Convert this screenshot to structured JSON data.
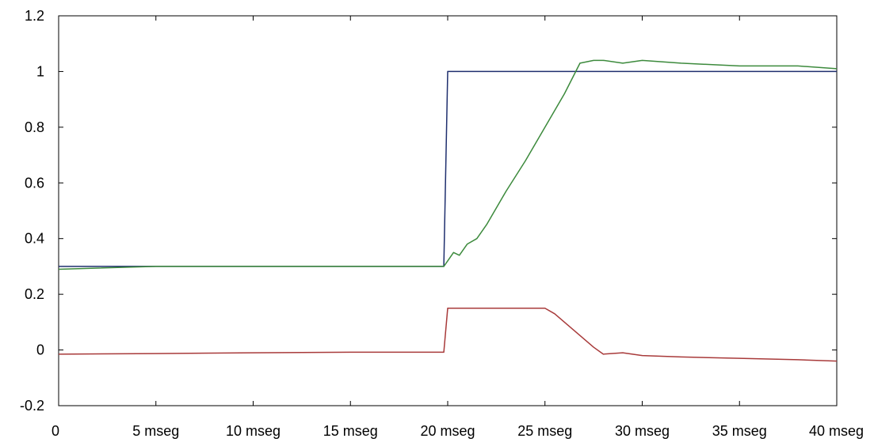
{
  "chart_data": {
    "type": "line",
    "title": "",
    "xlabel": "",
    "ylabel": "",
    "xlim": [
      0,
      40
    ],
    "ylim": [
      -0.2,
      1.2
    ],
    "grid": false,
    "legend": "none",
    "x_ticks": [
      {
        "value": 0,
        "label": "0"
      },
      {
        "value": 5,
        "label": "5 mseg"
      },
      {
        "value": 10,
        "label": "10 mseg"
      },
      {
        "value": 15,
        "label": "15 mseg"
      },
      {
        "value": 20,
        "label": "20 mseg"
      },
      {
        "value": 25,
        "label": "25 mseg"
      },
      {
        "value": 30,
        "label": "30 mseg"
      },
      {
        "value": 35,
        "label": "35 mseg"
      },
      {
        "value": 40,
        "label": "40 mseg"
      }
    ],
    "y_ticks": [
      {
        "value": 1.2,
        "label": "1.2"
      },
      {
        "value": 1.0,
        "label": "1"
      },
      {
        "value": 0.8,
        "label": "0.8"
      },
      {
        "value": 0.6,
        "label": "0.6"
      },
      {
        "value": 0.4,
        "label": "0.4"
      },
      {
        "value": 0.2,
        "label": "0.2"
      },
      {
        "value": 0.0,
        "label": "0"
      },
      {
        "value": -0.2,
        "label": "-0.2"
      }
    ],
    "series": [
      {
        "color": "#1f2f6e",
        "x": [
          0,
          19.8,
          19.8,
          20.0,
          40
        ],
        "y": [
          0.3,
          0.3,
          0.3,
          1.0,
          1.0
        ]
      },
      {
        "color": "#3c8a3c",
        "x": [
          0,
          5,
          10,
          15,
          19.8,
          20.0,
          20.3,
          20.6,
          21.0,
          21.5,
          22.0,
          23.0,
          24.0,
          25.0,
          26.0,
          26.8,
          27.5,
          28.0,
          29.0,
          30.0,
          32.0,
          35.0,
          38.0,
          40.0
        ],
        "y": [
          0.29,
          0.3,
          0.3,
          0.3,
          0.3,
          0.32,
          0.35,
          0.34,
          0.38,
          0.4,
          0.45,
          0.57,
          0.68,
          0.8,
          0.92,
          1.03,
          1.04,
          1.04,
          1.03,
          1.04,
          1.03,
          1.02,
          1.02,
          1.01
        ]
      },
      {
        "color": "#a83a3a",
        "x": [
          0,
          5,
          10,
          15,
          19.8,
          20.0,
          21,
          23,
          25.0,
          25.5,
          26.5,
          27.5,
          28.0,
          29.0,
          30.0,
          32.0,
          35.0,
          38.0,
          40.0
        ],
        "y": [
          -0.015,
          -0.013,
          -0.01,
          -0.008,
          -0.008,
          0.15,
          0.15,
          0.15,
          0.15,
          0.13,
          0.07,
          0.01,
          -0.015,
          -0.01,
          -0.02,
          -0.025,
          -0.03,
          -0.035,
          -0.04
        ]
      }
    ]
  }
}
